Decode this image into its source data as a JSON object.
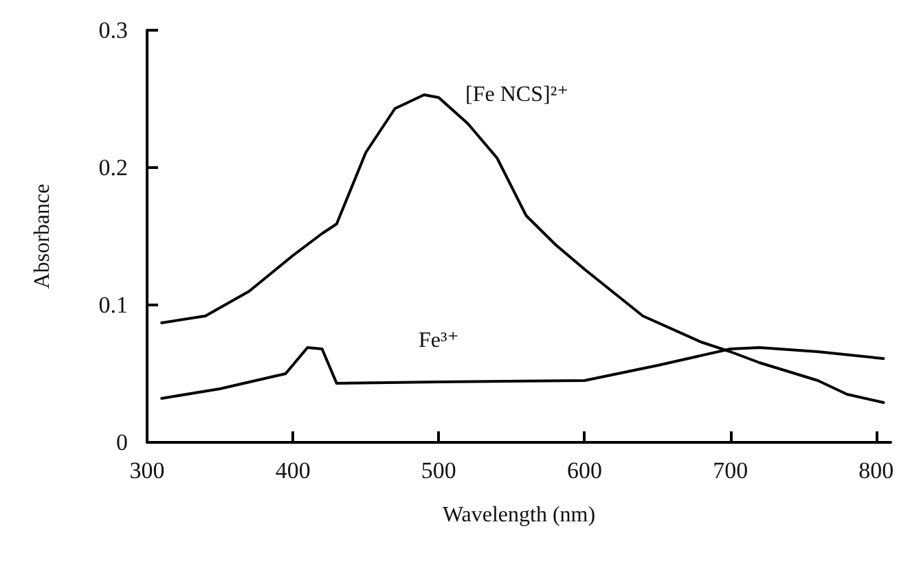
{
  "chart_data": {
    "type": "line",
    "xlabel": "Wavelength (nm)",
    "ylabel": "Absorbance",
    "xlim": [
      300,
      810
    ],
    "xticks": [
      300,
      400,
      500,
      600,
      700,
      800
    ],
    "ylim": [
      0,
      0.3
    ],
    "yticks": [
      0,
      0.1,
      0.2,
      0.3
    ],
    "grid": false,
    "legend": false,
    "marker": "none",
    "line_style": "solid",
    "series": [
      {
        "name": "[Fe NCS]²⁺",
        "color": "#000000",
        "x": [
          310,
          340,
          370,
          400,
          420,
          430,
          450,
          470,
          490,
          500,
          520,
          540,
          560,
          580,
          600,
          640,
          680,
          700,
          720,
          760,
          780,
          805
        ],
        "values": [
          0.087,
          0.092,
          0.11,
          0.136,
          0.152,
          0.159,
          0.211,
          0.243,
          0.253,
          0.251,
          0.232,
          0.207,
          0.165,
          0.144,
          0.126,
          0.092,
          0.073,
          0.066,
          0.058,
          0.045,
          0.035,
          0.029
        ]
      },
      {
        "name": "Fe³⁺",
        "color": "#000000",
        "x": [
          310,
          350,
          395,
          410,
          420,
          430,
          500,
          600,
          650,
          700,
          720,
          760,
          805
        ],
        "values": [
          0.032,
          0.039,
          0.05,
          0.069,
          0.068,
          0.043,
          0.044,
          0.045,
          0.056,
          0.068,
          0.069,
          0.066,
          0.061
        ]
      }
    ]
  }
}
